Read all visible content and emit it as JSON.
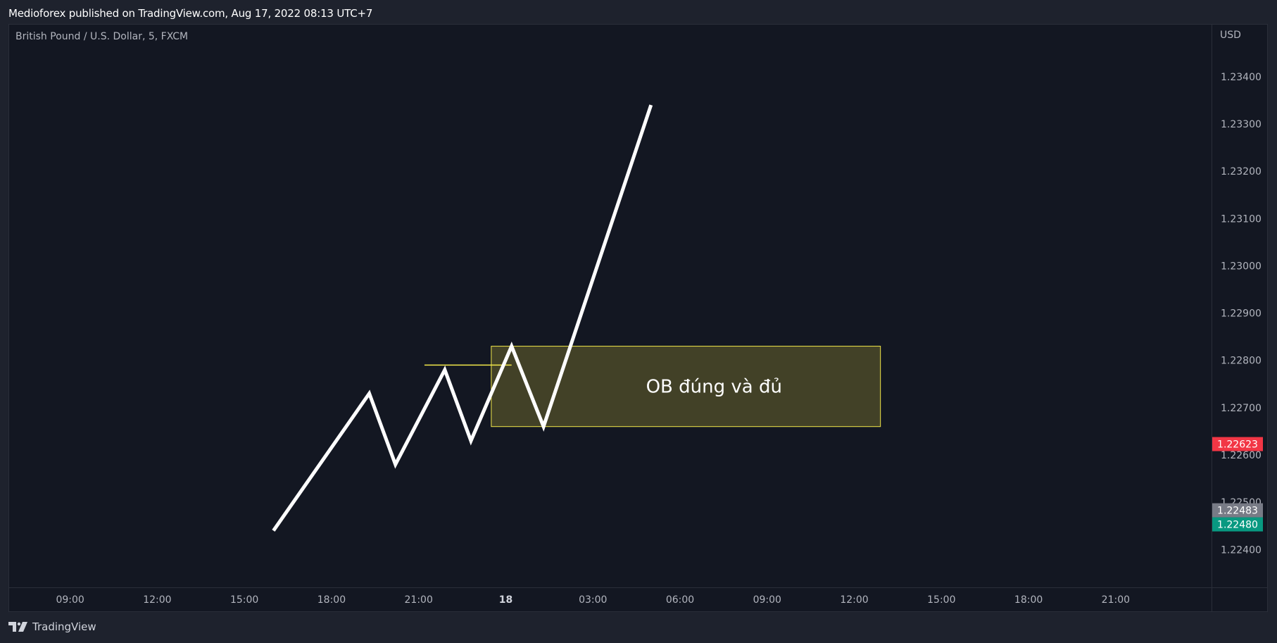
{
  "header": {
    "publisher_line": "Medioforex published on TradingView.com, Aug 17, 2022 08:13 UTC+7"
  },
  "footer": {
    "brand": "TradingView",
    "logo_icon": "tradingview-logo-icon"
  },
  "chart_data": {
    "type": "line",
    "symbol": "British Pound / U.S. Dollar, 5, FXCM",
    "currency": "USD",
    "x_ticks": [
      "09:00",
      "12:00",
      "15:00",
      "18:00",
      "21:00",
      "18",
      "03:00",
      "06:00",
      "09:00",
      "12:00",
      "15:00",
      "18:00",
      "21:00"
    ],
    "x_tick_hours": [
      9,
      12,
      15,
      18,
      21,
      24,
      27,
      30,
      33,
      36,
      39,
      42,
      45
    ],
    "bold_tick": "18",
    "y_ticks": [
      1.234,
      1.233,
      1.232,
      1.231,
      1.23,
      1.229,
      1.228,
      1.227,
      1.226,
      1.225,
      1.224
    ],
    "y_tick_labels": [
      "1.23400",
      "1.23300",
      "1.23200",
      "1.23100",
      "1.23000",
      "1.22900",
      "1.22800",
      "1.22700",
      "1.22600",
      "1.22500",
      "1.22400"
    ],
    "xlim_hours": [
      6.9,
      48.3
    ],
    "ylim": [
      1.2232,
      1.2351
    ],
    "series": [
      {
        "color": "#ffffff",
        "points": [
          {
            "x": 16.0,
            "y": 1.2244
          },
          {
            "x": 19.3,
            "y": 1.2273
          },
          {
            "x": 20.2,
            "y": 1.2258
          },
          {
            "x": 21.9,
            "y": 1.2278
          },
          {
            "x": 22.8,
            "y": 1.2263
          },
          {
            "x": 24.2,
            "y": 1.2283
          },
          {
            "x": 25.3,
            "y": 1.2266
          },
          {
            "x": 29.0,
            "y": 1.2334
          }
        ]
      }
    ],
    "annotations": {
      "zone": {
        "label": "OB đúng và đủ",
        "x_start": 23.5,
        "x_end": 36.9,
        "y_top": 1.2283,
        "y_bottom": 1.2266,
        "fill": "rgba(255,235,59,0.2)",
        "border": "#f3e84a"
      },
      "level_line": {
        "x_start": 21.2,
        "x_end": 24.2,
        "y": 1.2279,
        "color": "#f3e84a"
      }
    },
    "price_labels": [
      {
        "value": 1.22623,
        "text": "1.22623",
        "bg": "#f23645"
      },
      {
        "value": 1.22483,
        "text": "1.22483",
        "bg": "#787b86"
      },
      {
        "value": 1.2248,
        "text": "1.22480",
        "bg": "#089981"
      }
    ]
  }
}
